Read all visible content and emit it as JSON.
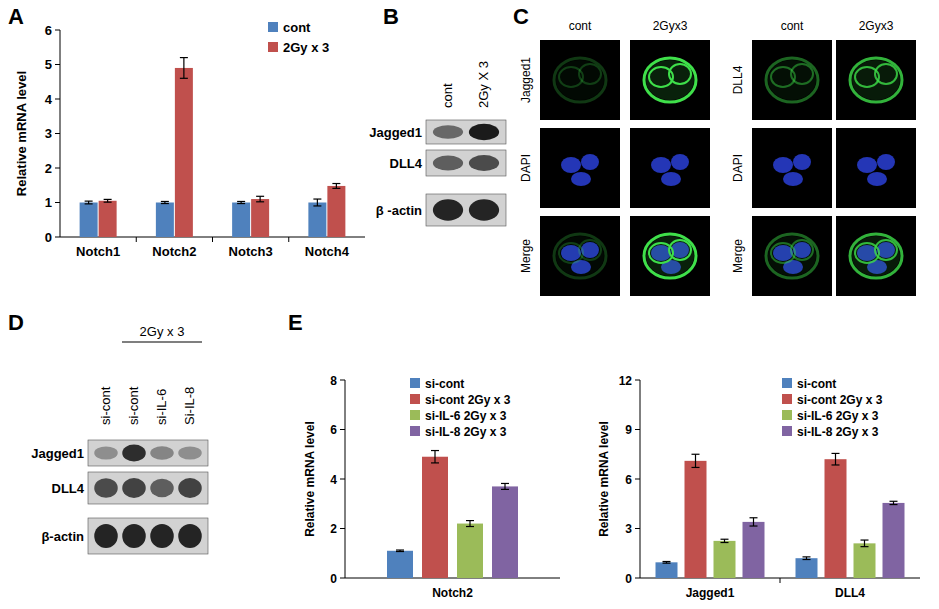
{
  "panels": [
    "A",
    "B",
    "C",
    "D",
    "E"
  ],
  "chart_data": [
    {
      "type": "bar",
      "y_label": "Relative mRNA level",
      "categories": [
        "Notch1",
        "Notch2",
        "Notch3",
        "Notch4"
      ],
      "series": [
        {
          "name": "cont",
          "color": "#4f81bd",
          "values": [
            1,
            1,
            1,
            1
          ],
          "errors": [
            0.04,
            0.03,
            0.03,
            0.1
          ]
        },
        {
          "name": "2Gy x 3",
          "color": "#c0504d",
          "values": [
            1.05,
            4.9,
            1.1,
            1.48
          ],
          "errors": [
            0.04,
            0.3,
            0.08,
            0.07
          ]
        }
      ],
      "ylim": [
        0,
        6
      ],
      "yticks": [
        0,
        1,
        2,
        3,
        4,
        5,
        6
      ],
      "legend": "top-right"
    },
    {
      "type": "bar",
      "y_label": "Relative mRNA level",
      "categories": [
        "Notch2"
      ],
      "series": [
        {
          "name": "si-cont",
          "color": "#4f81bd",
          "values": [
            1.1
          ],
          "errors": [
            0.03
          ]
        },
        {
          "name": "si-cont 2Gy x 3",
          "color": "#c0504d",
          "values": [
            4.9
          ],
          "errors": [
            0.25
          ]
        },
        {
          "name": "si-IL-6 2Gy x 3",
          "color": "#9bbb59",
          "values": [
            2.2
          ],
          "errors": [
            0.12
          ]
        },
        {
          "name": "si-IL-8 2Gy x 3",
          "color": "#8064a2",
          "values": [
            3.7
          ],
          "errors": [
            0.12
          ]
        }
      ],
      "ylim": [
        0,
        8
      ],
      "yticks": [
        0,
        2,
        4,
        6,
        8
      ],
      "legend": "top-right"
    },
    {
      "type": "bar",
      "y_label": "Relative mRNA level",
      "categories": [
        "Jagged1",
        "DLL4"
      ],
      "series": [
        {
          "name": "si-cont",
          "color": "#4f81bd",
          "values": [
            0.95,
            1.2
          ],
          "errors": [
            0.05,
            0.08
          ]
        },
        {
          "name": "si-cont 2Gy x 3",
          "color": "#c0504d",
          "values": [
            7.1,
            7.2
          ],
          "errors": [
            0.4,
            0.35
          ]
        },
        {
          "name": "si-IL-6 2Gy x 3",
          "color": "#9bbb59",
          "values": [
            2.25,
            2.1
          ],
          "errors": [
            0.1,
            0.2
          ]
        },
        {
          "name": "si-IL-8 2Gy x 3",
          "color": "#8064a2",
          "values": [
            3.4,
            4.55
          ],
          "errors": [
            0.25,
            0.1
          ]
        }
      ],
      "ylim": [
        0,
        12
      ],
      "yticks": [
        0,
        3,
        6,
        9,
        12
      ],
      "legend": "top-right"
    }
  ],
  "blots": [
    {
      "lanes": [
        "cont",
        "2Gy X 3"
      ],
      "rows": [
        {
          "label": "Jagged1",
          "intensities": [
            0.55,
            0.95
          ]
        },
        {
          "label": "DLL4",
          "intensities": [
            0.6,
            0.7
          ]
        },
        {
          "label": "β -actin",
          "intensities": [
            0.9,
            0.9
          ]
        }
      ]
    },
    {
      "group_label": "2Gy x 3",
      "lanes": [
        "si-cont",
        "si-cont",
        "si-IL-6",
        "Si-IL-8"
      ],
      "rows": [
        {
          "label": "Jagged1",
          "intensities": [
            0.35,
            0.85,
            0.4,
            0.35
          ]
        },
        {
          "label": "DLL4",
          "intensities": [
            0.7,
            0.75,
            0.6,
            0.75
          ]
        },
        {
          "label": "β-actin",
          "intensities": [
            0.9,
            0.9,
            0.9,
            0.9
          ]
        }
      ]
    }
  ],
  "images": [
    {
      "columns": [
        "cont",
        "2Gyx3"
      ],
      "rows": [
        "Jagged1",
        "DAPI",
        "Merge"
      ],
      "signal": [
        0.25,
        1
      ]
    },
    {
      "columns": [
        "cont",
        "2Gyx3"
      ],
      "rows": [
        "DLL4",
        "DAPI",
        "Merge"
      ],
      "signal": [
        0.45,
        0.8
      ]
    }
  ]
}
